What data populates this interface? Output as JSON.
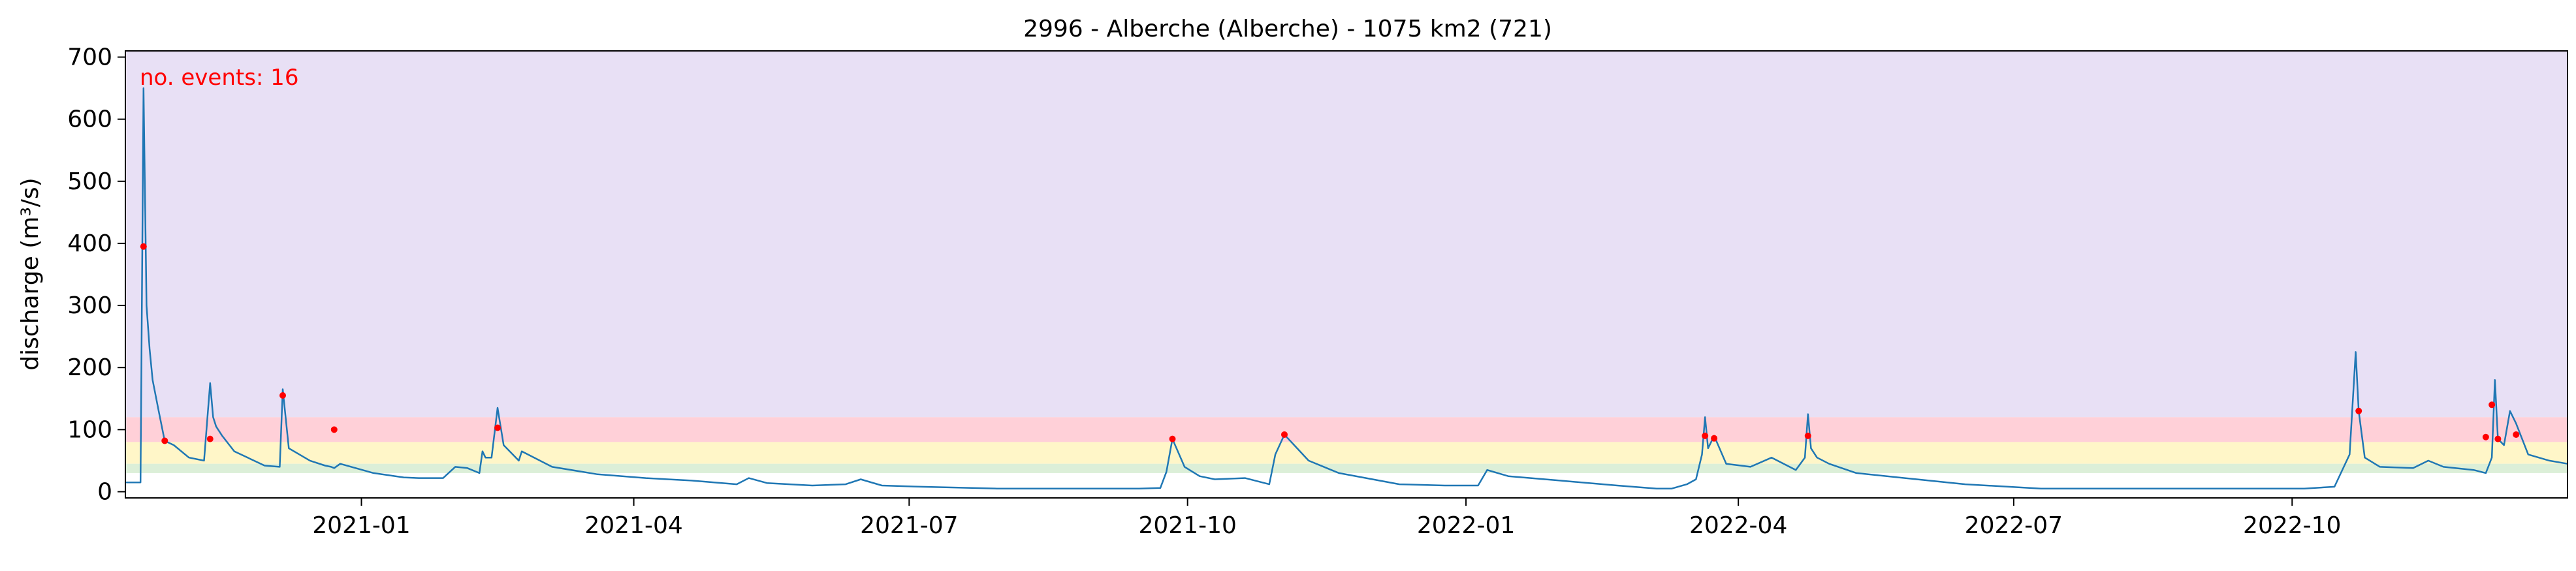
{
  "chart_data": {
    "type": "line",
    "title": "2996 - Alberche (Alberche) - 1075 km2 (721)",
    "ylabel": "discharge (m³/s)",
    "xlabel": "",
    "annotation": "no. events: 16",
    "xlim": [
      "2020-10-15",
      "2022-12-31"
    ],
    "ylim": [
      -10,
      710
    ],
    "yticks": [
      0,
      100,
      200,
      300,
      400,
      500,
      600,
      700
    ],
    "xticks": [
      "2021-01",
      "2021-04",
      "2021-07",
      "2021-10",
      "2022-01",
      "2022-04",
      "2022-07",
      "2022-10"
    ],
    "grid": false,
    "colors": {
      "line": "#1f77b4",
      "events": "#ff0000",
      "annotation": "#ff0000",
      "band_top": "#e8e0f5",
      "band_red": "#ffd0d8",
      "band_yellow": "#fff6c8",
      "band_green": "#dcefd8"
    },
    "bands": [
      {
        "from": 120,
        "to": 710,
        "color": "band_top"
      },
      {
        "from": 80,
        "to": 120,
        "color": "band_red"
      },
      {
        "from": 45,
        "to": 80,
        "color": "band_yellow"
      },
      {
        "from": 30,
        "to": 45,
        "color": "band_green"
      }
    ],
    "series": [
      {
        "x": [
          "2020-10-15",
          "2020-10-20",
          "2020-10-21",
          "2020-10-22",
          "2020-10-23",
          "2020-10-24",
          "2020-10-26",
          "2020-10-28",
          "2020-10-31",
          "2020-11-05",
          "2020-11-10",
          "2020-11-12",
          "2020-11-13",
          "2020-11-14",
          "2020-11-16",
          "2020-11-20",
          "2020-11-30",
          "2020-12-05",
          "2020-12-06",
          "2020-12-08",
          "2020-12-15",
          "2020-12-20",
          "2020-12-22",
          "2020-12-23",
          "2020-12-25",
          "2021-01-05",
          "2021-01-15",
          "2021-01-20",
          "2021-01-28",
          "2021-02-01",
          "2021-02-05",
          "2021-02-09",
          "2021-02-10",
          "2021-02-11",
          "2021-02-13",
          "2021-02-15",
          "2021-02-17",
          "2021-02-22",
          "2021-02-23",
          "2021-03-05",
          "2021-03-20",
          "2021-04-05",
          "2021-04-20",
          "2021-05-05",
          "2021-05-09",
          "2021-05-15",
          "2021-05-30",
          "2021-06-10",
          "2021-06-15",
          "2021-06-22",
          "2021-07-05",
          "2021-07-30",
          "2021-08-30",
          "2021-09-15",
          "2021-09-22",
          "2021-09-24",
          "2021-09-26",
          "2021-09-30",
          "2021-10-05",
          "2021-10-10",
          "2021-10-20",
          "2021-10-28",
          "2021-10-30",
          "2021-11-02",
          "2021-11-10",
          "2021-11-20",
          "2021-12-10",
          "2021-12-25",
          "2022-01-05",
          "2022-01-08",
          "2022-01-15",
          "2022-02-01",
          "2022-02-20",
          "2022-03-05",
          "2022-03-10",
          "2022-03-15",
          "2022-03-18",
          "2022-03-20",
          "2022-03-21",
          "2022-03-22",
          "2022-03-24",
          "2022-03-28",
          "2022-04-05",
          "2022-04-12",
          "2022-04-20",
          "2022-04-23",
          "2022-04-24",
          "2022-04-25",
          "2022-04-27",
          "2022-05-01",
          "2022-05-10",
          "2022-05-30",
          "2022-06-15",
          "2022-07-10",
          "2022-08-20",
          "2022-09-10",
          "2022-09-25",
          "2022-10-05",
          "2022-10-15",
          "2022-10-20",
          "2022-10-22",
          "2022-10-23",
          "2022-10-25",
          "2022-10-30",
          "2022-11-10",
          "2022-11-15",
          "2022-11-20",
          "2022-11-30",
          "2022-12-04",
          "2022-12-06",
          "2022-12-07",
          "2022-12-08",
          "2022-12-10",
          "2022-12-12",
          "2022-12-14",
          "2022-12-18",
          "2022-12-25",
          "2022-12-31"
        ],
        "y": [
          15,
          15,
          650,
          300,
          230,
          180,
          130,
          82,
          75,
          55,
          50,
          175,
          120,
          105,
          90,
          65,
          42,
          40,
          165,
          70,
          50,
          42,
          40,
          38,
          45,
          30,
          23,
          22,
          22,
          40,
          38,
          30,
          65,
          55,
          55,
          135,
          75,
          50,
          65,
          40,
          28,
          22,
          18,
          12,
          22,
          14,
          10,
          12,
          20,
          10,
          8,
          5,
          5,
          5,
          6,
          32,
          85,
          40,
          25,
          20,
          22,
          12,
          60,
          92,
          50,
          30,
          12,
          10,
          10,
          35,
          25,
          18,
          10,
          5,
          5,
          12,
          20,
          60,
          120,
          70,
          90,
          45,
          40,
          55,
          35,
          55,
          125,
          70,
          55,
          45,
          30,
          20,
          12,
          5,
          5,
          5,
          5,
          5,
          8,
          60,
          225,
          130,
          55,
          40,
          38,
          50,
          40,
          35,
          30,
          55,
          180,
          85,
          75,
          130,
          110,
          60,
          50,
          45
        ],
        "events": [
          {
            "x": "2020-10-21",
            "y": 395
          },
          {
            "x": "2020-10-28",
            "y": 82
          },
          {
            "x": "2020-11-12",
            "y": 85
          },
          {
            "x": "2020-12-06",
            "y": 155
          },
          {
            "x": "2020-12-23",
            "y": 100
          },
          {
            "x": "2021-02-15",
            "y": 103
          },
          {
            "x": "2021-09-26",
            "y": 85
          },
          {
            "x": "2021-11-02",
            "y": 92
          },
          {
            "x": "2022-03-21",
            "y": 90
          },
          {
            "x": "2022-03-24",
            "y": 86
          },
          {
            "x": "2022-04-24",
            "y": 90
          },
          {
            "x": "2022-10-23",
            "y": 130
          },
          {
            "x": "2022-12-04",
            "y": 88
          },
          {
            "x": "2022-12-06",
            "y": 140
          },
          {
            "x": "2022-12-08",
            "y": 85
          },
          {
            "x": "2022-12-14",
            "y": 92
          }
        ]
      }
    ]
  }
}
